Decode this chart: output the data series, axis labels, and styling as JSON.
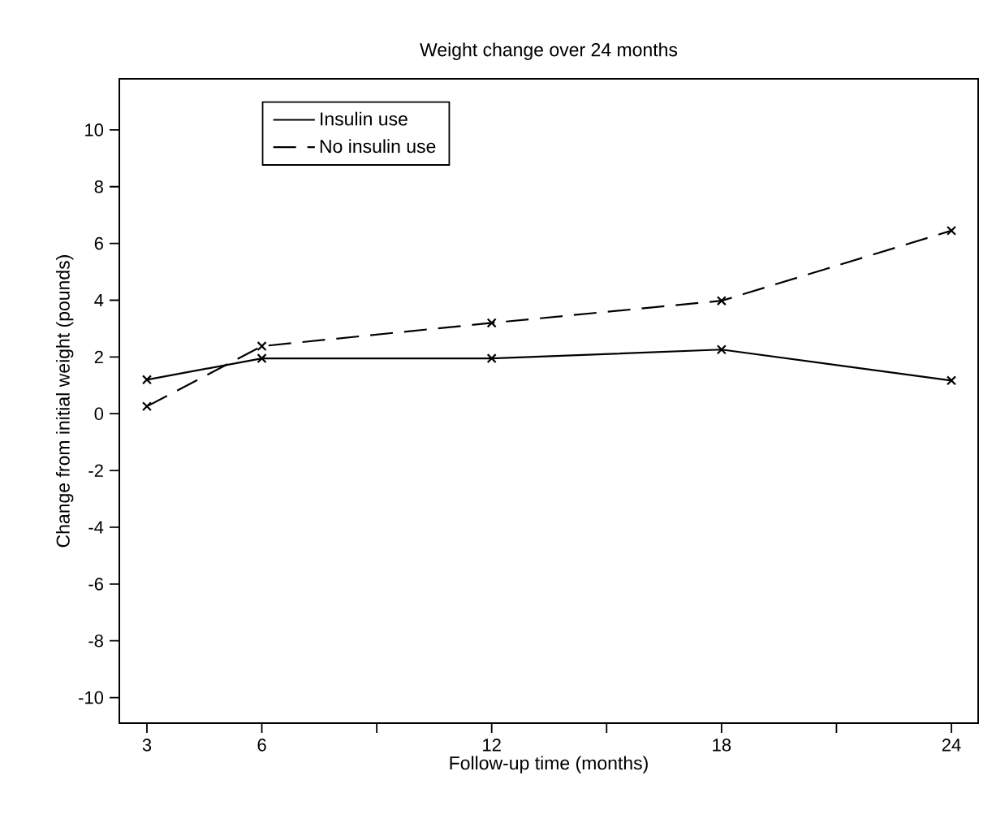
{
  "chart_data": {
    "type": "line",
    "title": "Weight change over 24 months",
    "xlabel": "Follow-up time (months)",
    "ylabel": "Change from initial weight (pounds)",
    "x": [
      3,
      6,
      12,
      18,
      24
    ],
    "series": [
      {
        "name": "Insulin use",
        "color": "#000000",
        "line_style": "solid",
        "values": [
          1.2,
          1.95,
          1.95,
          2.26,
          1.17
        ]
      },
      {
        "name": "No insulin use",
        "color": "#000000",
        "line_style": "dashed",
        "values": [
          0.26,
          2.38,
          3.2,
          3.98,
          6.45
        ]
      }
    ],
    "xlim": [
      2.28,
      24.7
    ],
    "ylim": [
      -10.9,
      11.8
    ],
    "xticks": [
      3,
      6,
      {
        "value": 9,
        "label": null
      },
      12,
      {
        "value": 15,
        "label": null
      },
      18,
      {
        "value": 21,
        "label": null
      },
      24
    ],
    "yticks": [
      -10,
      -8,
      -6,
      -4,
      -2,
      0,
      2,
      4,
      6,
      8,
      10
    ],
    "marker": "cross",
    "legend": "top left",
    "grid": false
  }
}
